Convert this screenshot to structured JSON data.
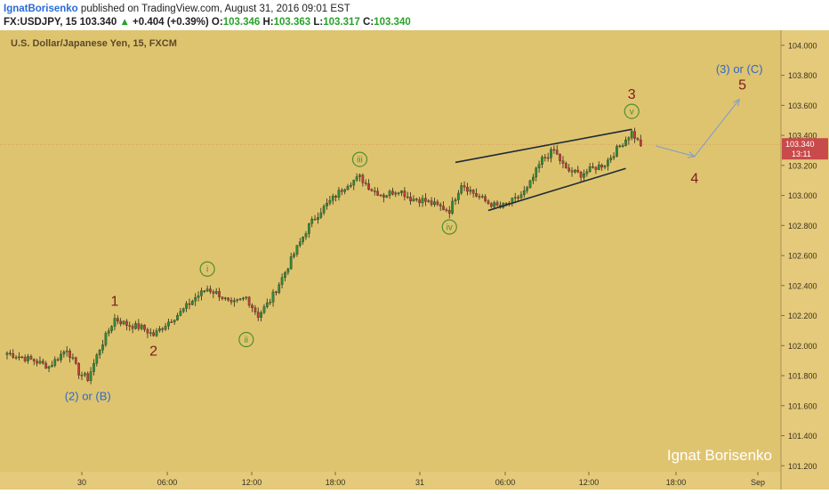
{
  "header": {
    "author": "IgnatBorisenko",
    "published": "published on TradingView.com, August 31, 2016 09:01 EST",
    "symbol": "FX:USDJPY, 15",
    "last": "103.340",
    "change_arrow": "▲",
    "change": "+0.404 (+0.39%)",
    "o_label": "O:",
    "o_value": "103.346",
    "h_label": "H:",
    "h_value": "103.363",
    "l_label": "L:",
    "l_value": "103.317",
    "c_label": "C:",
    "c_value": "103.340"
  },
  "colors": {
    "background": "#dfc46f",
    "axis_panel": "#e4ca7a",
    "up_candle": "#2e8b3a",
    "down_candle": "#c23b3b",
    "wave_number": "#7a1d1d",
    "wave_label_blue": "#2f68c8",
    "subwave_circle": "#4f8f2e",
    "trendline": "#1f2b3a",
    "price_tag": "#c94a4a"
  },
  "chart_data": {
    "type": "candlestick",
    "title": "U.S. Dollar/Japanese Yen, 15, FXCM",
    "ylim": [
      101.16,
      104.1
    ],
    "y_ticks": [
      "104.000",
      "103.800",
      "103.600",
      "103.400",
      "103.200",
      "103.000",
      "102.800",
      "102.600",
      "102.400",
      "102.200",
      "102.000",
      "101.800",
      "101.600",
      "101.400",
      "101.200"
    ],
    "x_ticks": [
      "30",
      "06:00",
      "12:00",
      "18:00",
      "31",
      "06:00",
      "12:00",
      "18:00",
      "Sep"
    ],
    "last_price": "103.340",
    "countdown": "13:11",
    "close_path": [
      [
        0,
        101.95
      ],
      [
        9,
        101.9
      ],
      [
        14,
        101.86
      ],
      [
        20,
        101.98
      ],
      [
        24,
        101.82
      ],
      [
        27,
        101.78
      ],
      [
        31,
        101.98
      ],
      [
        36,
        102.18
      ],
      [
        40,
        102.14
      ],
      [
        45,
        102.12
      ],
      [
        49,
        102.07
      ],
      [
        54,
        102.16
      ],
      [
        58,
        102.22
      ],
      [
        63,
        102.32
      ],
      [
        67,
        102.38
      ],
      [
        71,
        102.34
      ],
      [
        75,
        102.27
      ],
      [
        80,
        102.32
      ],
      [
        84,
        102.2
      ],
      [
        88,
        102.3
      ],
      [
        92,
        102.45
      ],
      [
        97,
        102.65
      ],
      [
        101,
        102.8
      ],
      [
        105,
        102.9
      ],
      [
        109,
        102.98
      ],
      [
        114,
        103.08
      ],
      [
        118,
        103.12
      ],
      [
        122,
        103.04
      ],
      [
        126,
        103.0
      ],
      [
        131,
        103.04
      ],
      [
        135,
        102.98
      ],
      [
        139,
        102.97
      ],
      [
        144,
        102.93
      ],
      [
        148,
        102.9
      ],
      [
        152,
        103.08
      ],
      [
        157,
        103.0
      ],
      [
        161,
        102.95
      ],
      [
        165,
        102.92
      ],
      [
        170,
        102.97
      ],
      [
        174,
        103.04
      ],
      [
        179,
        103.24
      ],
      [
        183,
        103.3
      ],
      [
        187,
        103.17
      ],
      [
        192,
        103.14
      ],
      [
        196,
        103.18
      ],
      [
        200,
        103.21
      ],
      [
        205,
        103.33
      ],
      [
        209,
        103.42
      ],
      [
        212,
        103.33
      ]
    ],
    "annotations": [
      {
        "label": "1",
        "x": 36,
        "y": 102.3,
        "kind": "wave"
      },
      {
        "label": "2",
        "x": 49,
        "y": 101.97,
        "kind": "wave"
      },
      {
        "label": "(2) or (B)",
        "x": 27,
        "y": 101.66,
        "kind": "degree"
      },
      {
        "label": "i",
        "x": 67,
        "y": 102.51,
        "kind": "subwave"
      },
      {
        "label": "ii",
        "x": 80,
        "y": 102.04,
        "kind": "subwave"
      },
      {
        "label": "iii",
        "x": 118,
        "y": 103.24,
        "kind": "subwave"
      },
      {
        "label": "iv",
        "x": 148,
        "y": 102.79,
        "kind": "subwave"
      },
      {
        "label": "v",
        "x": 209,
        "y": 103.56,
        "kind": "subwave"
      },
      {
        "label": "3",
        "x": 209,
        "y": 103.68,
        "kind": "wave"
      },
      {
        "label": "4",
        "x": 230,
        "y": 103.12,
        "kind": "wave"
      },
      {
        "label": "5",
        "x": 246,
        "y": 103.74,
        "kind": "wave"
      },
      {
        "label": "(3) or (C)",
        "x": 245,
        "y": 103.84,
        "kind": "degree"
      }
    ],
    "trendlines": [
      {
        "from": [
          150,
          103.22
        ],
        "to": [
          209,
          103.44
        ]
      },
      {
        "from": [
          161,
          102.9
        ],
        "to": [
          207,
          103.18
        ]
      }
    ],
    "projection": [
      [
        217,
        103.33
      ],
      [
        230,
        103.26
      ],
      [
        245,
        103.64
      ]
    ],
    "watermark": "Ignat Borisenko"
  }
}
